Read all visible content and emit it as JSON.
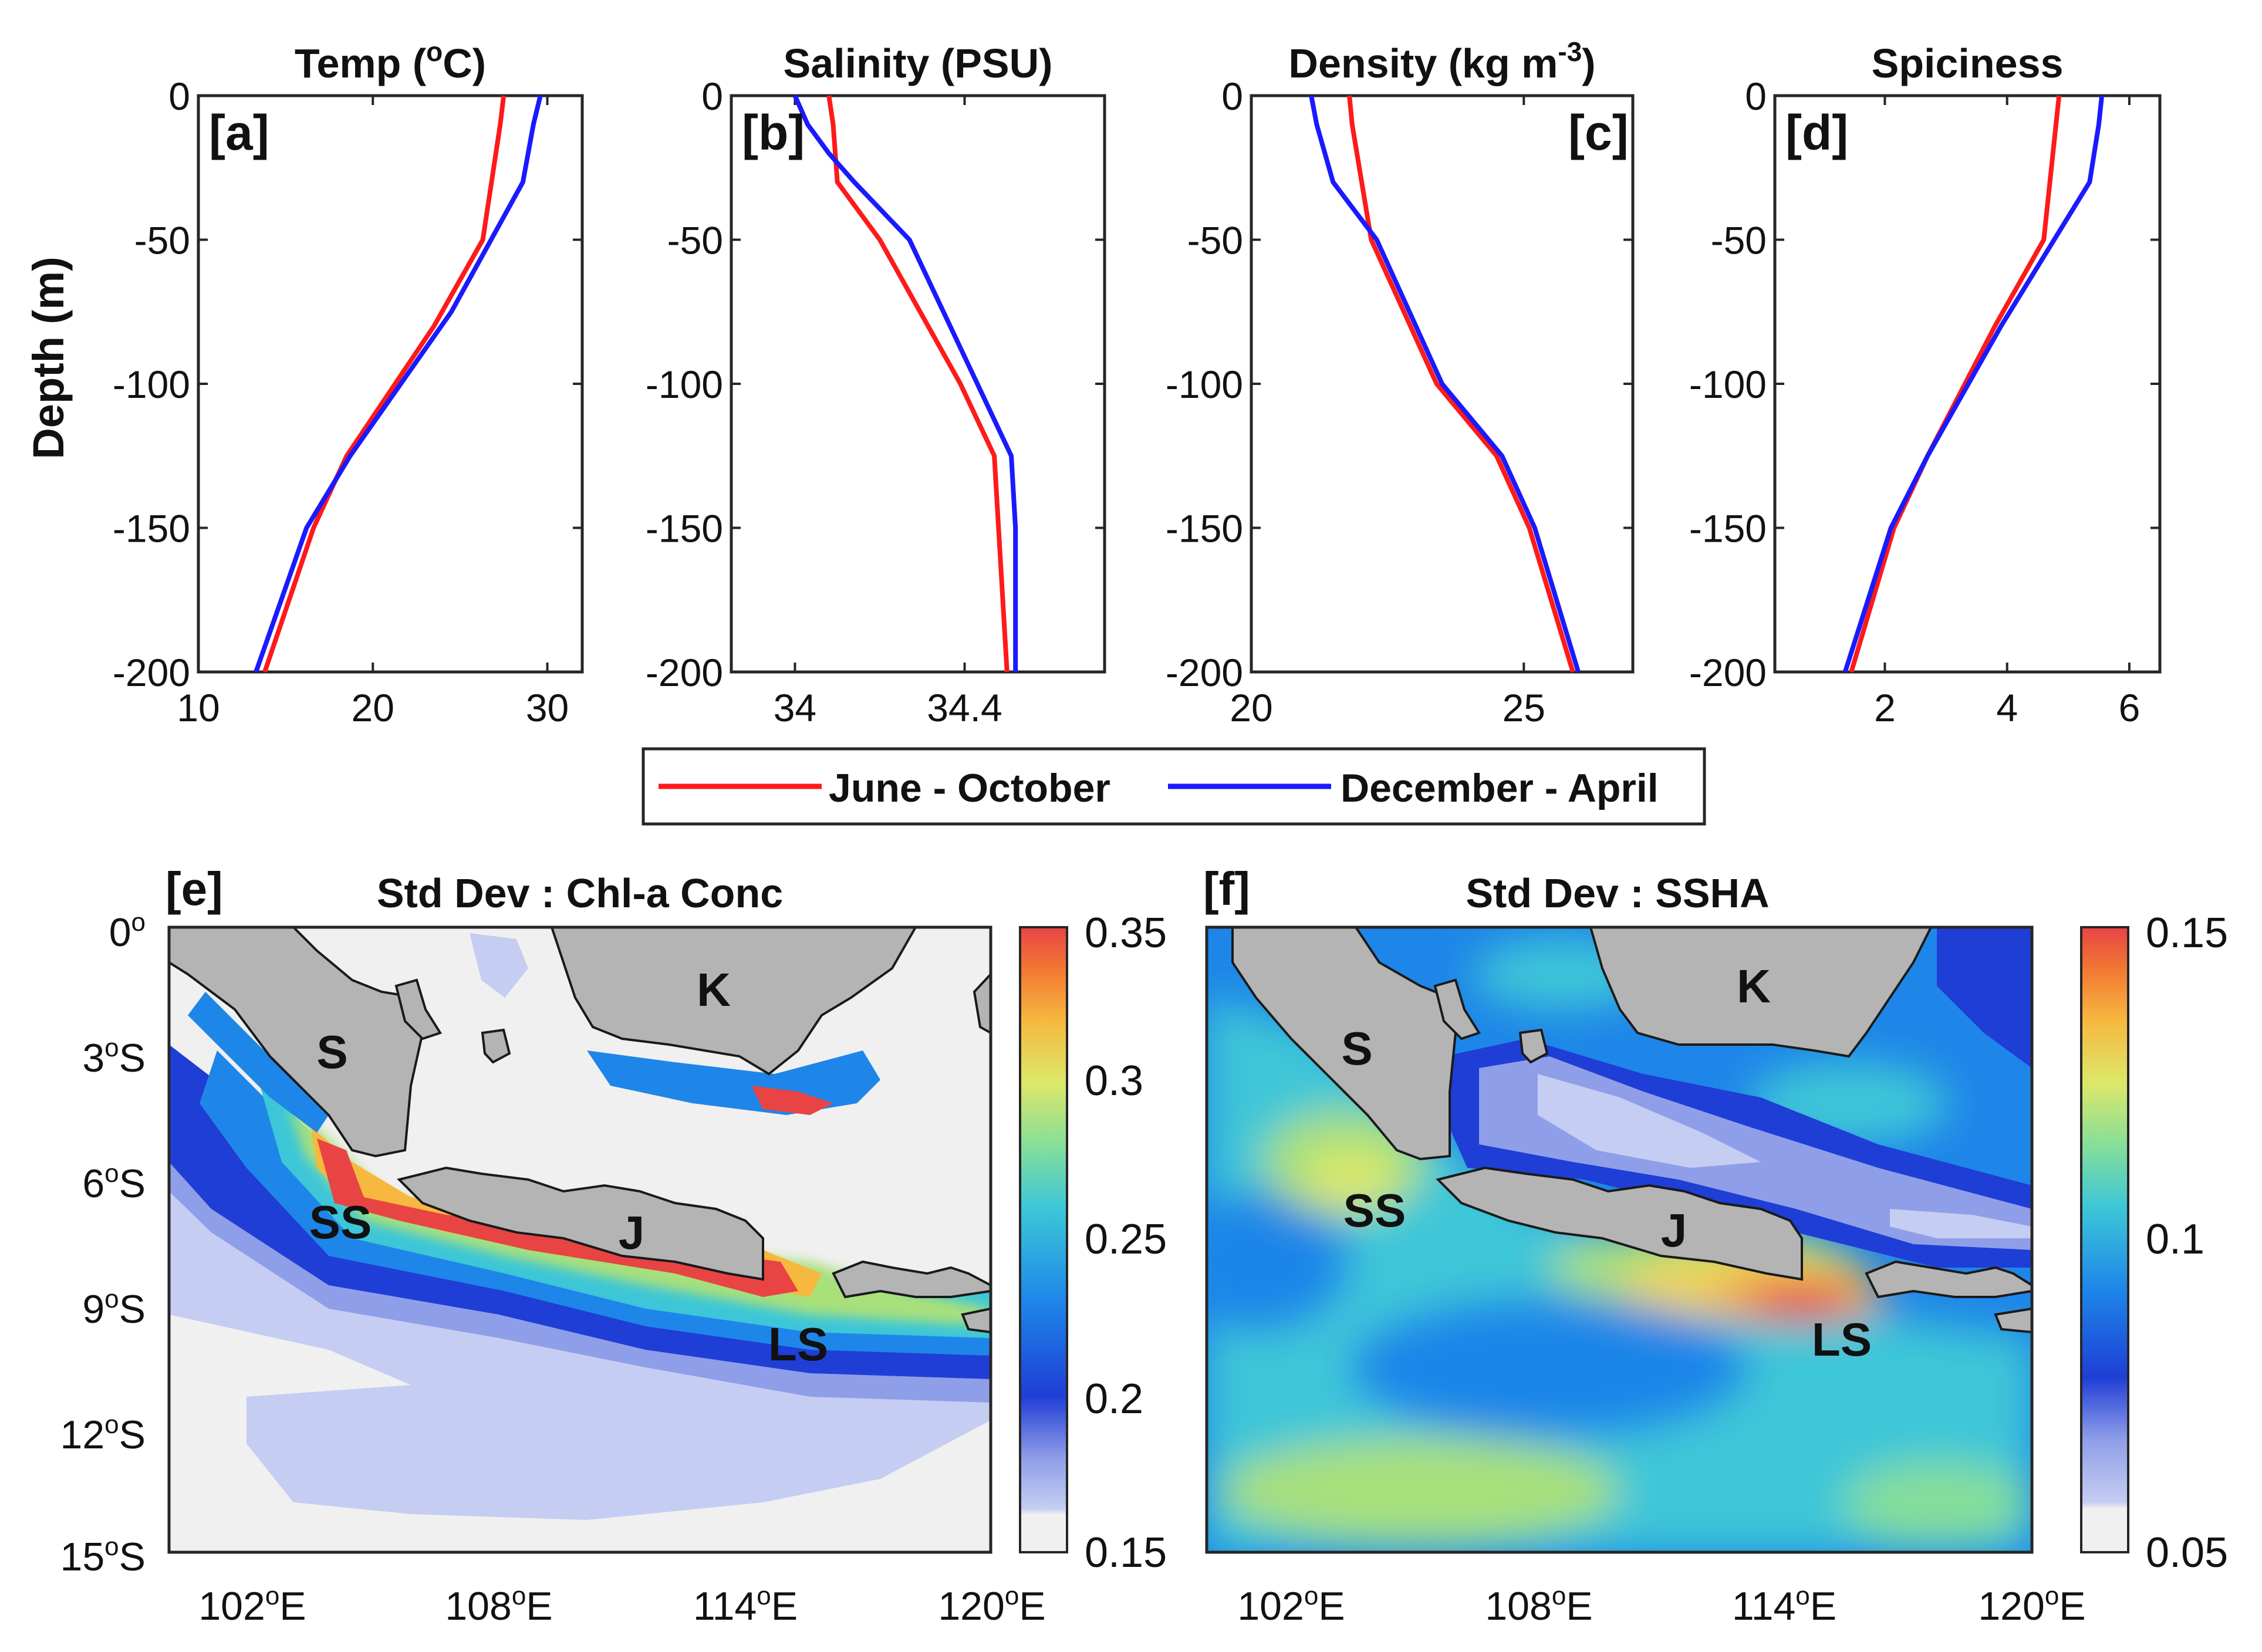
{
  "figure": {
    "colors": {
      "june_october": "#ff1a1a",
      "december_april": "#1a1aff",
      "land": "#b4b4b4",
      "axis": "#262626"
    },
    "legend": {
      "entries": [
        "June - October",
        "December - April"
      ]
    }
  },
  "chart_data": [
    {
      "panel": "[a]",
      "type": "line",
      "title": "Temp (°C)",
      "title_base": "Temp (",
      "title_sup": "o",
      "title_tail": "C)",
      "ylabel": "Depth (m)",
      "xlim": [
        10,
        32
      ],
      "ylim": [
        -200,
        0
      ],
      "xticks": [
        10,
        20,
        30
      ],
      "yticks": [
        0,
        -50,
        -100,
        -150,
        -200
      ],
      "series": [
        {
          "name": "June - October",
          "x": [
            27.5,
            27.3,
            26.3,
            23.5,
            18.5,
            16.6,
            13.8
          ],
          "y": [
            0,
            -10,
            -50,
            -80,
            -125,
            -150,
            -200
          ]
        },
        {
          "name": "December - April",
          "x": [
            29.6,
            29.2,
            28.6,
            24.5,
            18.7,
            16.2,
            13.3
          ],
          "y": [
            0,
            -10,
            -30,
            -75,
            -125,
            -150,
            -200
          ]
        }
      ]
    },
    {
      "panel": "[b]",
      "type": "line",
      "title": "Salinity (PSU)",
      "xlim": [
        33.85,
        34.73
      ],
      "ylim": [
        -200,
        0
      ],
      "xticks": [
        34,
        34.4
      ],
      "yticks": [
        0,
        -50,
        -100,
        -150,
        -200
      ],
      "series": [
        {
          "name": "June - October",
          "x": [
            34.08,
            34.09,
            34.1,
            34.2,
            34.39,
            34.47,
            34.48,
            34.5
          ],
          "y": [
            0,
            -10,
            -30,
            -50,
            -100,
            -125,
            -150,
            -200
          ]
        },
        {
          "name": "December - April",
          "x": [
            34.0,
            34.03,
            34.08,
            34.14,
            34.27,
            34.43,
            34.51,
            34.52,
            34.52
          ],
          "y": [
            0,
            -10,
            -20,
            -30,
            -50,
            -100,
            -125,
            -150,
            -200
          ]
        }
      ]
    },
    {
      "panel": "[c]",
      "type": "line",
      "title": "Density (kg m^-3)",
      "title_base": "Density (kg m",
      "title_sup": "-3",
      "title_tail": ")",
      "xlim": [
        20,
        27
      ],
      "ylim": [
        -200,
        0
      ],
      "xticks": [
        20,
        25
      ],
      "yticks": [
        0,
        -50,
        -100,
        -150,
        -200
      ],
      "series": [
        {
          "name": "June - October",
          "x": [
            21.8,
            21.85,
            22.2,
            23.4,
            24.5,
            25.1,
            25.9
          ],
          "y": [
            0,
            -10,
            -50,
            -100,
            -125,
            -150,
            -200
          ]
        },
        {
          "name": "December - April",
          "x": [
            21.1,
            21.2,
            21.5,
            22.3,
            23.5,
            24.6,
            25.2,
            26.0
          ],
          "y": [
            0,
            -10,
            -30,
            -50,
            -100,
            -125,
            -150,
            -200
          ]
        }
      ]
    },
    {
      "panel": "[d]",
      "type": "line",
      "title": "Spiciness",
      "xlim": [
        0.2,
        6.5
      ],
      "ylim": [
        -200,
        0
      ],
      "xticks": [
        2,
        4,
        6
      ],
      "yticks": [
        0,
        -50,
        -100,
        -150,
        -200
      ],
      "series": [
        {
          "name": "June - October",
          "x": [
            4.85,
            4.8,
            4.6,
            3.8,
            2.7,
            2.15,
            1.45
          ],
          "y": [
            0,
            -10,
            -50,
            -80,
            -125,
            -150,
            -200
          ]
        },
        {
          "name": "December - April",
          "x": [
            5.55,
            5.5,
            5.35,
            3.9,
            2.7,
            2.1,
            1.35
          ],
          "y": [
            0,
            -10,
            -30,
            -80,
            -125,
            -150,
            -200
          ]
        }
      ]
    },
    {
      "panel": "[e]",
      "type": "heatmap",
      "title": "Std Dev : Chl-a Conc",
      "xlim": [
        100,
        120
      ],
      "ylim": [
        -15,
        0
      ],
      "xticks": [
        "102°E",
        "108°E",
        "114°E",
        "120°E"
      ],
      "yticks": [
        "0°",
        "3°S",
        "6°S",
        "9°S",
        "12°S",
        "15°S"
      ],
      "colorbar_ticks": [
        "0.35",
        "0.3",
        "0.25",
        "0.2",
        "0.15"
      ],
      "labels": [
        "S",
        "K",
        "SS",
        "J",
        "LS"
      ]
    },
    {
      "panel": "[f]",
      "type": "heatmap",
      "title": "Std Dev : SSHA",
      "xlim": [
        100,
        120
      ],
      "ylim": [
        -15,
        0
      ],
      "xticks": [
        "102°E",
        "108°E",
        "114°E",
        "120°E"
      ],
      "colorbar_ticks": [
        "0.15",
        "0.1",
        "0.05"
      ],
      "labels": [
        "S",
        "K",
        "SS",
        "J",
        "LS"
      ]
    }
  ]
}
